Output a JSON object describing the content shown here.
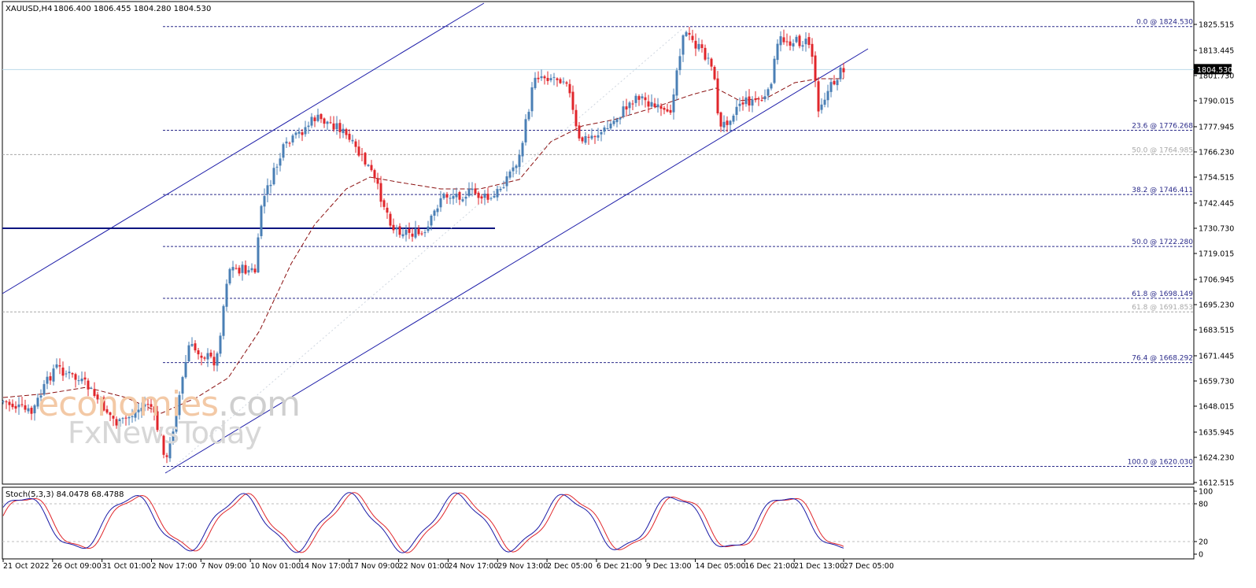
{
  "header": {
    "symbol": "XAUUSD,H4",
    "ohlc": "1806.400 1806.455 1804.280 1804.530"
  },
  "indicator": {
    "label": "Stoch(5,3,3) 84.0478 68.4788",
    "levels": [
      "100",
      "80",
      "20",
      "0"
    ],
    "main_color": "#1a1aa6",
    "signal_color": "#e0262b"
  },
  "watermark": {
    "line1_brand": "economies",
    "line1_domain": ".com",
    "line2": "FxNewsToday"
  },
  "price_axis": {
    "ticks": [
      "1825.515",
      "1813.445",
      "1801.730",
      "1790.015",
      "1777.945",
      "1766.230",
      "1754.515",
      "1742.445",
      "1730.730",
      "1719.015",
      "1706.945",
      "1695.230",
      "1683.515",
      "1671.445",
      "1659.730",
      "1648.015",
      "1635.945",
      "1624.230",
      "1612.515"
    ],
    "current_price": "1804.530"
  },
  "time_axis": {
    "labels": [
      "21 Oct 2022",
      "26 Oct 09:00",
      "31 Oct 01:00",
      "2 Nov 17:00",
      "7 Nov 09:00",
      "10 Nov 01:00",
      "14 Nov 17:00",
      "17 Nov 09:00",
      "22 Nov 01:00",
      "24 Nov 17:00",
      "29 Nov 13:00",
      "2 Dec 05:00",
      "6 Dec 21:00",
      "9 Dec 13:00",
      "14 Dec 05:00",
      "16 Dec 21:00",
      "21 Dec 13:00",
      "27 Dec 05:00"
    ]
  },
  "fib_levels": [
    {
      "label": "0.0 @ 1824.530",
      "price": 1824.53,
      "style": "primary"
    },
    {
      "label": "23.6 @ 1776.268",
      "price": 1776.268,
      "style": "primary"
    },
    {
      "label": "50.0 @ 1764.985",
      "price": 1764.985,
      "style": "secondary"
    },
    {
      "label": "38.2 @ 1746.411",
      "price": 1746.411,
      "style": "primary"
    },
    {
      "label": "50.0 @ 1722.280",
      "price": 1722.28,
      "style": "primary"
    },
    {
      "label": "61.8 @ 1698.149",
      "price": 1698.149,
      "style": "primary"
    },
    {
      "label": "61.8 @ 1691.853",
      "price": 1691.853,
      "style": "secondary"
    },
    {
      "label": "76.4 @ 1668.292",
      "price": 1668.292,
      "style": "primary"
    },
    {
      "label": "100.0 @ 1620.030",
      "price": 1620.03,
      "style": "primary"
    }
  ],
  "colors": {
    "bull": "#4a7fb5",
    "bear": "#e0262b",
    "fib": "#2b2b8a",
    "fib_secondary": "#a8a8a8",
    "channel": "#1c1ca8",
    "support": "#0c1580",
    "ma": "#8b1010",
    "current_line": "#bcd9ea"
  },
  "chart_data": {
    "type": "candlestick",
    "symbol": "XAUUSD",
    "timeframe": "H4",
    "ylim": [
      1612.515,
      1825.515
    ],
    "series_note": "approximate close path",
    "x": [
      "21 Oct 2022",
      "26 Oct 09:00",
      "31 Oct 01:00",
      "2 Nov 17:00",
      "7 Nov 09:00",
      "10 Nov 01:00",
      "14 Nov 17:00",
      "17 Nov 09:00",
      "22 Nov 01:00",
      "24 Nov 17:00",
      "29 Nov 13:00",
      "2 Dec 05:00",
      "6 Dec 21:00",
      "9 Dec 13:00",
      "14 Dec 05:00",
      "16 Dec 21:00",
      "21 Dec 13:00",
      "27 Dec 05:00"
    ],
    "close": [
      1652,
      1660,
      1644,
      1628,
      1706,
      1762,
      1775,
      1750,
      1740,
      1748,
      1754,
      1770,
      1778,
      1790,
      1778,
      1792,
      1815,
      1805
    ],
    "last": {
      "open": 1806.4,
      "high": 1806.455,
      "low": 1804.28,
      "close": 1804.53
    },
    "stochastic": {
      "k": 84.0478,
      "d": 68.4788
    }
  }
}
